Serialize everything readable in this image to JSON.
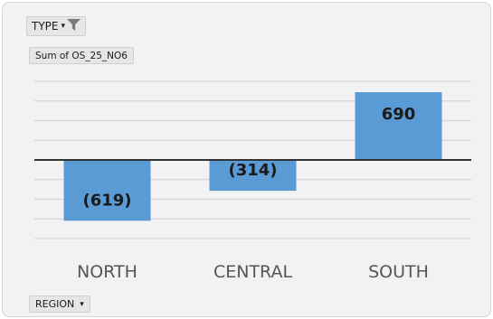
{
  "filter_buttons": {
    "type_label": "TYPE",
    "value_label": "Sum of OS_25_NO6",
    "region_label": "REGION"
  },
  "icons": {
    "type_dropdown": "chevron-down-icon",
    "type_filter": "funnel-icon",
    "region_dropdown": "chevron-down-icon"
  },
  "colors": {
    "bar": "#5b9bd5",
    "gridline": "#d4d4d4",
    "zero_line": "#333333",
    "category_text": "#555555",
    "data_label": "#1a1a1a"
  },
  "chart_data": {
    "type": "bar",
    "categories": [
      "NORTH",
      "CENTRAL",
      "SOUTH"
    ],
    "values": [
      -619,
      -314,
      690
    ],
    "data_labels": [
      "(619)",
      "(314)",
      "690"
    ],
    "title": "",
    "xlabel": "",
    "ylabel": "",
    "ylim": [
      -900,
      800
    ],
    "gridlines": true,
    "legend": "none"
  }
}
